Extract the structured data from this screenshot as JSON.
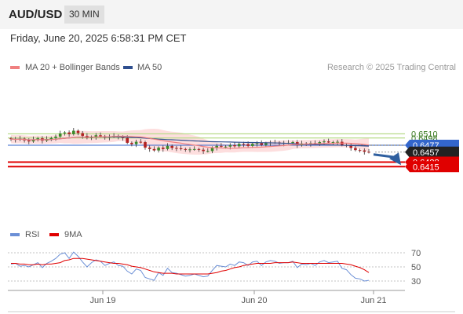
{
  "header": {
    "symbol": "AUD/USD",
    "timeframe": "30 MIN"
  },
  "timestamp": "Friday, June 20, 2025 6:58:31 PM CET",
  "legend": {
    "ma20_label": "MA 20 + Bollinger Bands",
    "ma50_label": "MA 50",
    "rsi_label": "RSI",
    "ma9_label": "9MA"
  },
  "credit": "Research © 2025 Trading Central",
  "colors": {
    "ma20": "#f08080",
    "ma50": "#2f4f8f",
    "bollinger_fill": "#fcd6d6",
    "resistance": "#b9dc8c",
    "support": "#e00000",
    "current": "#3366cc",
    "price_tag": "#222222",
    "rsi": "#6b8fd6",
    "rsi_ma": "#e00000",
    "candle_up": "#3a8a2a",
    "candle_down": "#b22222",
    "arrow": "#2f5f9f"
  },
  "chart_data": [
    {
      "type": "candlestick",
      "title": "",
      "x_ticks": [
        "Jun 19",
        "Jun 20",
        "Jun 21"
      ],
      "levels": [
        {
          "name": "resistance-2",
          "value": 0.651,
          "label": "0.6510",
          "kind": "resistance"
        },
        {
          "name": "resistance-1",
          "value": 0.6498,
          "label": "0.6498",
          "kind": "resistance"
        },
        {
          "name": "pivot",
          "value": 0.6477,
          "label": "0.6477",
          "kind": "pivot"
        },
        {
          "name": "last-price",
          "value": 0.6457,
          "label": "0.6457",
          "kind": "price"
        },
        {
          "name": "support-1",
          "value": 0.6428,
          "label": "0.6428",
          "kind": "support"
        },
        {
          "name": "support-2",
          "value": 0.6415,
          "label": "0.6415",
          "kind": "support"
        }
      ],
      "close": [
        0.6495,
        0.6493,
        0.6496,
        0.6491,
        0.6488,
        0.6494,
        0.6497,
        0.649,
        0.6495,
        0.6498,
        0.6502,
        0.6511,
        0.6514,
        0.6509,
        0.6519,
        0.6512,
        0.6504,
        0.6498,
        0.6501,
        0.6506,
        0.6503,
        0.6499,
        0.6502,
        0.6504,
        0.65,
        0.6498,
        0.6484,
        0.648,
        0.6487,
        0.6486,
        0.647,
        0.6466,
        0.6462,
        0.647,
        0.6466,
        0.6475,
        0.6469,
        0.6468,
        0.6466,
        0.6464,
        0.6465,
        0.6466,
        0.6464,
        0.646,
        0.646,
        0.647,
        0.6475,
        0.6473,
        0.6473,
        0.6477,
        0.6474,
        0.6481,
        0.648,
        0.6475,
        0.6481,
        0.6483,
        0.6478,
        0.6483,
        0.6485,
        0.6485,
        0.6482,
        0.6484,
        0.6484,
        0.6486,
        0.6477,
        0.6482,
        0.6481,
        0.6483,
        0.6481,
        0.6486,
        0.6488,
        0.6485,
        0.6486,
        0.6487,
        0.6478,
        0.6477,
        0.6469,
        0.6463,
        0.6462,
        0.6458,
        0.6457
      ],
      "rsi_axis": [
        30,
        50,
        70
      ],
      "rsi": [
        54,
        55,
        51,
        52,
        50,
        53,
        56,
        49,
        55,
        58,
        62,
        68,
        70,
        62,
        71,
        65,
        57,
        50,
        56,
        60,
        58,
        52,
        55,
        57,
        52,
        51,
        44,
        40,
        47,
        45,
        35,
        33,
        31,
        42,
        38,
        48,
        42,
        41,
        39,
        37,
        38,
        40,
        38,
        36,
        37,
        45,
        52,
        51,
        50,
        54,
        52,
        57,
        56,
        52,
        57,
        58,
        52,
        57,
        59,
        58,
        55,
        56,
        56,
        58,
        49,
        54,
        53,
        55,
        52,
        57,
        59,
        56,
        57,
        58,
        48,
        46,
        39,
        34,
        33,
        30,
        31
      ],
      "rsi_ma": [
        55,
        55,
        54,
        54,
        53,
        53,
        54,
        53,
        54,
        54,
        55,
        56,
        59,
        60,
        62,
        62,
        62,
        61,
        60,
        59,
        58,
        57,
        56,
        55,
        55,
        54,
        53,
        51,
        50,
        49,
        47,
        45,
        43,
        42,
        41,
        41,
        41,
        40,
        40,
        40,
        40,
        40,
        40,
        40,
        40,
        41,
        42,
        44,
        45,
        47,
        49,
        50,
        52,
        53,
        54,
        55,
        55,
        55,
        55,
        56,
        56,
        56,
        56,
        57,
        56,
        55,
        55,
        55,
        55,
        55,
        55,
        55,
        55,
        55,
        55,
        54,
        53,
        51,
        49,
        46,
        42
      ]
    }
  ]
}
